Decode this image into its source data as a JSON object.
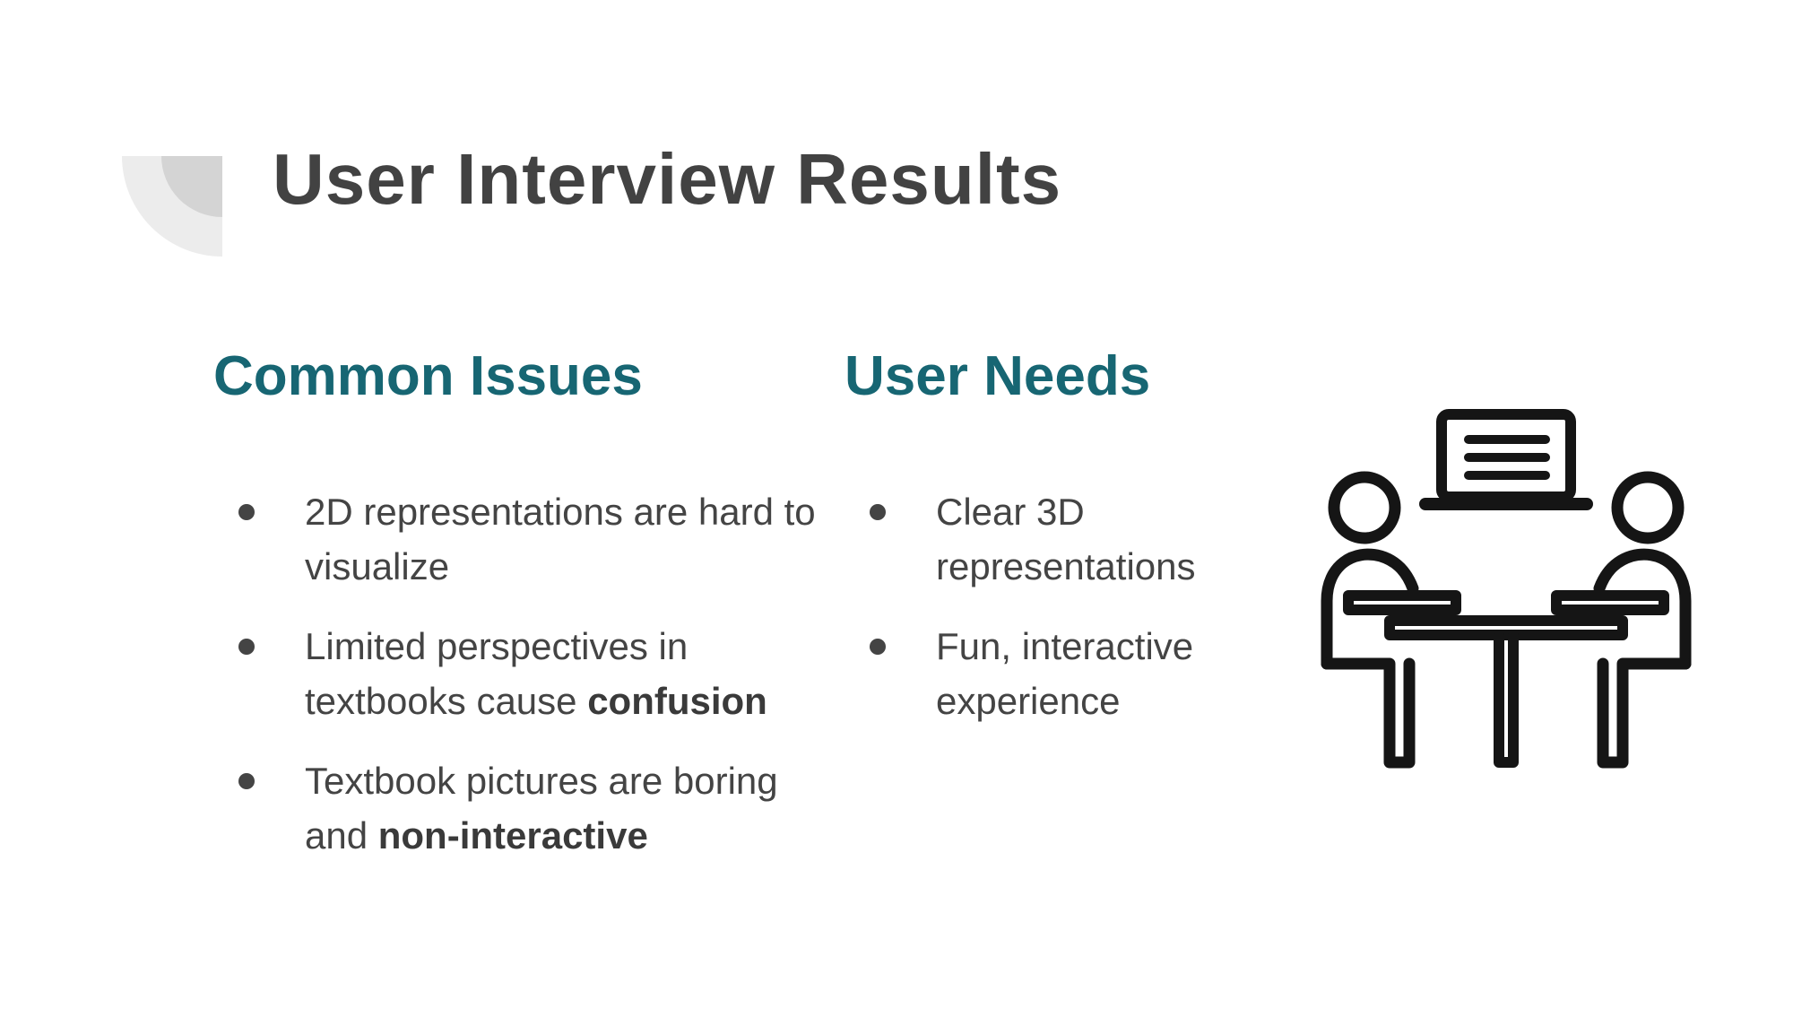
{
  "slide": {
    "title": "User Interview Results"
  },
  "common_issues": {
    "heading": "Common Issues",
    "items": [
      {
        "text": "2D representations are hard to visualize",
        "bold": ""
      },
      {
        "text": "Limited perspectives in textbooks cause ",
        "bold": "confusion"
      },
      {
        "text": "Textbook pictures are boring and ",
        "bold": "non-interactive"
      }
    ]
  },
  "user_needs": {
    "heading": "User Needs",
    "items": [
      {
        "text": "Clear 3D representations",
        "bold": ""
      },
      {
        "text": "Fun, interactive experience",
        "bold": ""
      }
    ]
  },
  "illustration": {
    "icon": "interview-meeting-icon"
  },
  "colors": {
    "heading_accent": "#176673",
    "title": "#424242",
    "body_text": "#444444"
  }
}
